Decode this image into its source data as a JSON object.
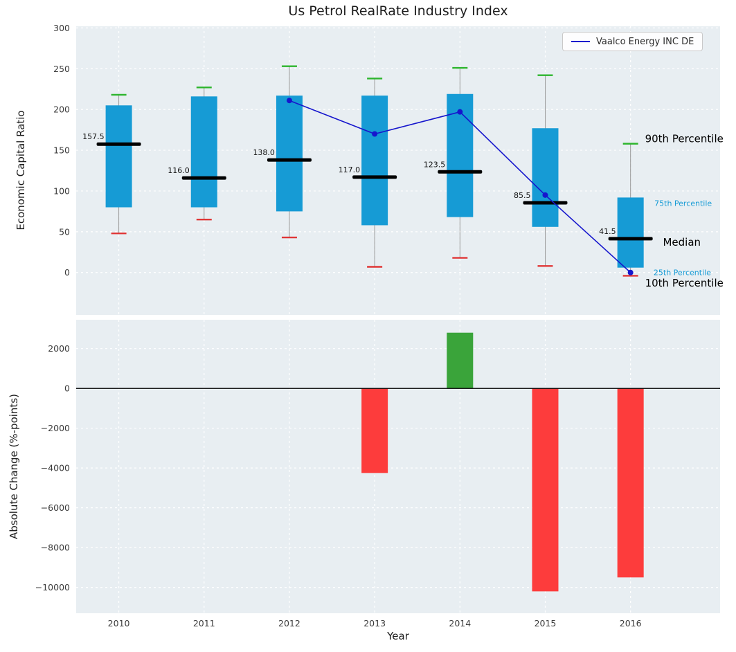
{
  "chart_data": [
    {
      "type": "boxplot",
      "title": "Us Petrol RealRate Industry Index",
      "ylabel": "Economic Capital Ratio",
      "xlabel": "",
      "categories": [
        "2010",
        "2011",
        "2012",
        "2013",
        "2014",
        "2015",
        "2016"
      ],
      "ylim": [
        -52,
        302
      ],
      "xlim": [
        -0.5,
        7.05
      ],
      "yticks": [
        0,
        50,
        100,
        150,
        200,
        250,
        300
      ],
      "grid": true,
      "boxes": [
        {
          "p10": 48,
          "p25": 80,
          "median": 157.5,
          "p75": 205,
          "p90": 218
        },
        {
          "p10": 65,
          "p25": 80,
          "median": 116.0,
          "p75": 216,
          "p90": 227
        },
        {
          "p10": 43,
          "p25": 75,
          "median": 138.0,
          "p75": 217,
          "p90": 253
        },
        {
          "p10": 7,
          "p25": 58,
          "median": 117.0,
          "p75": 217,
          "p90": 238
        },
        {
          "p10": 18,
          "p25": 68,
          "median": 123.5,
          "p75": 219,
          "p90": 251
        },
        {
          "p10": 8,
          "p25": 56,
          "median": 85.5,
          "p75": 177,
          "p90": 242
        },
        {
          "p10": -4,
          "p25": 6,
          "median": 41.5,
          "p75": 92,
          "p90": 158
        }
      ],
      "series": [
        {
          "name": "Vaalco Energy INC DE",
          "color": "#1616cd",
          "x": [
            "2012",
            "2013",
            "2014",
            "2015",
            "2016"
          ],
          "values": [
            211,
            170,
            197,
            95,
            0
          ]
        }
      ],
      "legend": {
        "label": "Vaalco Energy INC DE",
        "position": "upper right"
      },
      "annotations": [
        {
          "text": "90th Percentile",
          "x": 6.17,
          "y": 164,
          "color": "#000000",
          "size": 15
        },
        {
          "text": "75th Percentile",
          "x": 6.28,
          "y": 86,
          "color": "#169bd5",
          "size": 11
        },
        {
          "text": "Median",
          "x": 6.38,
          "y": 37,
          "color": "#000000",
          "size": 15
        },
        {
          "text": "25th Percentile",
          "x": 6.27,
          "y": 1,
          "color": "#169bd5",
          "size": 11
        },
        {
          "text": "10th Percentile",
          "x": 6.17,
          "y": -13,
          "color": "#000000",
          "size": 15
        }
      ],
      "colors": {
        "box": "#169bd5",
        "median": "#000000",
        "whisker": "#999999",
        "p90_cap": "#2cb52c",
        "p10_cap": "#e03636",
        "panel_bg": "#e8eef2",
        "grid": "#ffffff"
      }
    },
    {
      "type": "bar",
      "ylabel": "Absolute Change (%-points)",
      "xlabel": "Year",
      "categories": [
        "2010",
        "2011",
        "2012",
        "2013",
        "2014",
        "2015",
        "2016"
      ],
      "values": [
        0,
        0,
        0,
        -4250,
        2800,
        -10200,
        -9500
      ],
      "ylim": [
        -11300,
        3450
      ],
      "yticks": [
        2000,
        0,
        -2000,
        -4000,
        -6000,
        -8000,
        -10000
      ],
      "grid": true,
      "colors": {
        "positive": "#3aa43a",
        "negative": "#fd3c3c",
        "zero_line": "#000000",
        "panel_bg": "#e8eef2",
        "grid": "#ffffff"
      }
    }
  ]
}
